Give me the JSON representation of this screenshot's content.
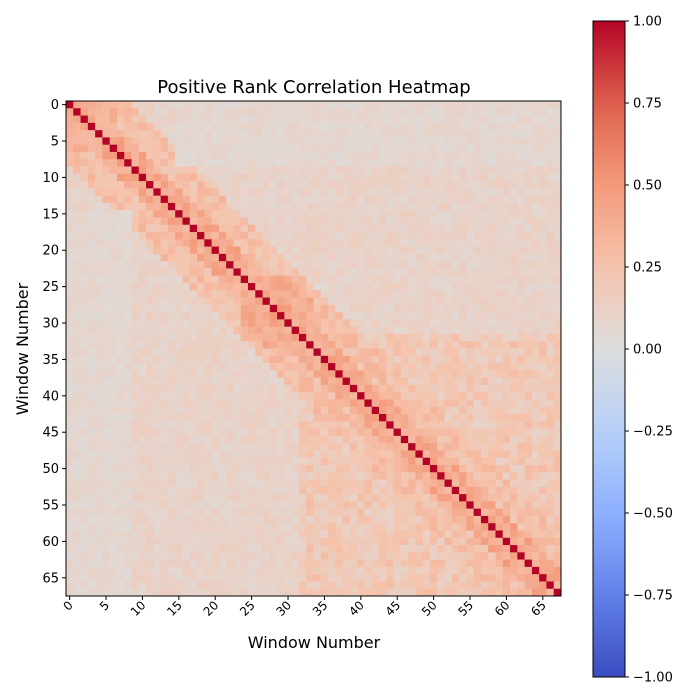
{
  "chart_data": {
    "type": "heatmap",
    "title": "Positive Rank Correlation Heatmap",
    "xlabel": "Window Number",
    "ylabel": "Window Number",
    "n": 68,
    "x_ticks": [
      0,
      5,
      10,
      15,
      20,
      25,
      30,
      35,
      40,
      45,
      50,
      55,
      60,
      65
    ],
    "y_ticks": [
      0,
      5,
      10,
      15,
      20,
      25,
      30,
      35,
      40,
      45,
      50,
      55,
      60,
      65
    ],
    "x_tick_labels": [
      "0",
      "5",
      "10",
      "15",
      "20",
      "25",
      "30",
      "35",
      "40",
      "45",
      "50",
      "55",
      "60",
      "65"
    ],
    "y_tick_labels": [
      "0",
      "5",
      "10",
      "15",
      "20",
      "25",
      "30",
      "35",
      "40",
      "45",
      "50",
      "55",
      "60",
      "65"
    ],
    "colorbar": {
      "vmin": -1.0,
      "vmax": 1.0,
      "ticks": [
        1.0,
        0.75,
        0.5,
        0.25,
        0.0,
        -0.25,
        -0.5,
        -0.75,
        -1.0
      ],
      "tick_labels": [
        "1.00",
        "0.75",
        "0.50",
        "0.25",
        "0.00",
        "−0.25",
        "−0.50",
        "−0.75",
        "−1.00"
      ]
    },
    "colormap": "coolwarm",
    "diagonal_value": 1.0,
    "values_note": "matrix values estimated from the color: diagonal is 1.0; off-diagonal values are mostly 0–0.5, highest near the diagonal",
    "value_range_offdiag": [
      0.0,
      0.5
    ],
    "band_value": 0.3
  }
}
